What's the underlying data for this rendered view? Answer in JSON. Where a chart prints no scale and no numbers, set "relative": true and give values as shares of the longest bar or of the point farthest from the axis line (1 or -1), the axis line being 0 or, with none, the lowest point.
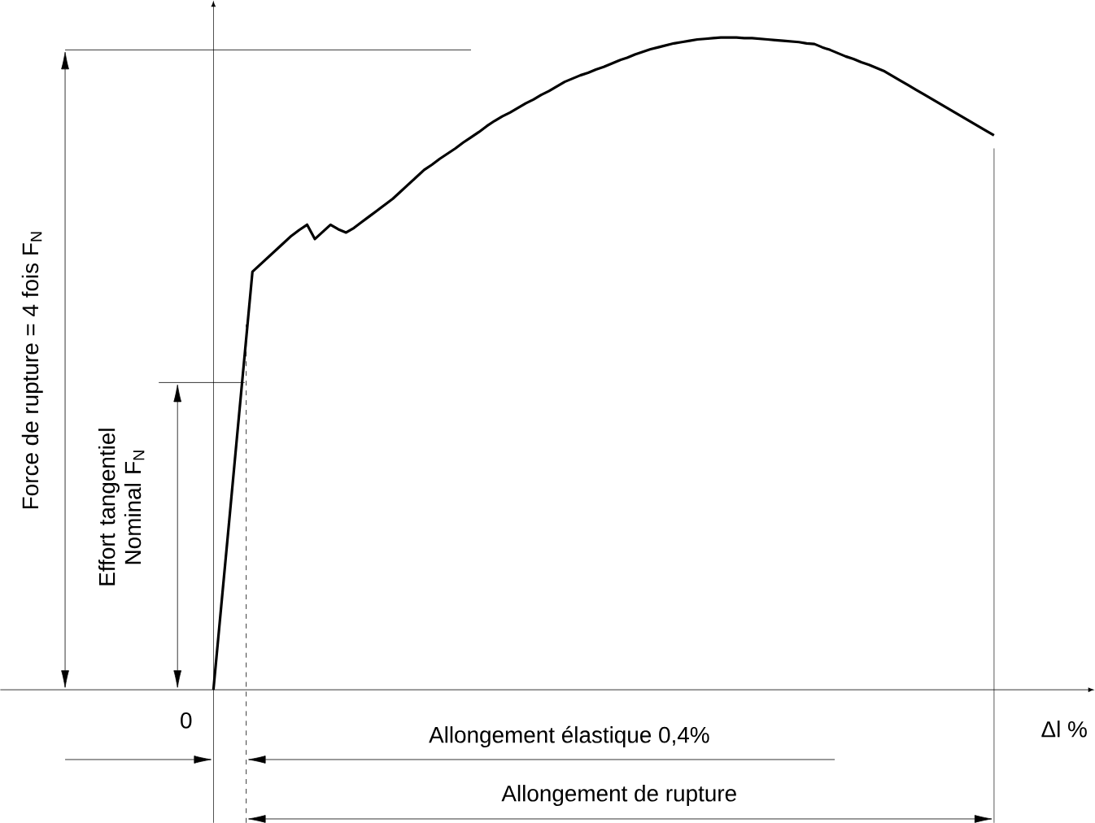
{
  "chart_data": {
    "type": "line",
    "relative": true,
    "xlabel": "Δl %",
    "categories": [
      null,
      null,
      null,
      null,
      null,
      null,
      null,
      null,
      null,
      null,
      null,
      null,
      null,
      null,
      null,
      null,
      null,
      null,
      null,
      null,
      null,
      null,
      null,
      null,
      null,
      null,
      null,
      null,
      null,
      null,
      null,
      null,
      null,
      null,
      null,
      null,
      null,
      null,
      null,
      null,
      null,
      null,
      null,
      null,
      null,
      null,
      null,
      null,
      null,
      null,
      null,
      null,
      null,
      null,
      null,
      null,
      null,
      null,
      null,
      null,
      null,
      null,
      null,
      null,
      null,
      null,
      null,
      null,
      null,
      null,
      null,
      null,
      null,
      null,
      null,
      null,
      null,
      null,
      null,
      null,
      null,
      null,
      null,
      null,
      null,
      null,
      null,
      null,
      null,
      null,
      null,
      null,
      null,
      null,
      null,
      null,
      null,
      null,
      null,
      null,
      null
    ],
    "series": [
      {
        "color": "#000000",
        "values": [
          0,
          0.128,
          0.256,
          0.385,
          0.513,
          0.641,
          0.652,
          0.663,
          0.674,
          0.685,
          0.696,
          0.705,
          0.713,
          0.691,
          0.702,
          0.713,
          0.706,
          0.701,
          0.708,
          0.717,
          0.726,
          0.735,
          0.744,
          0.753,
          0.764,
          0.775,
          0.786,
          0.797,
          0.805,
          0.814,
          0.822,
          0.83,
          0.839,
          0.847,
          0.855,
          0.864,
          0.872,
          0.879,
          0.885,
          0.892,
          0.899,
          0.905,
          0.912,
          0.918,
          0.925,
          0.932,
          0.937,
          0.942,
          0.946,
          0.951,
          0.955,
          0.96,
          0.965,
          0.969,
          0.974,
          0.978,
          0.982,
          0.985,
          0.988,
          0.991,
          0.993,
          0.995,
          0.997,
          0.998,
          0.999,
          1.0,
          1.0,
          1.0,
          0.999,
          0.999,
          0.998,
          0.997,
          0.996,
          0.995,
          0.994,
          0.993,
          0.991,
          0.99,
          0.985,
          0.981,
          0.976,
          0.971,
          0.967,
          0.962,
          0.958,
          0.953,
          0.948,
          0.941,
          0.934,
          0.927,
          0.92,
          0.913,
          0.906,
          0.899,
          0.892,
          0.885,
          0.878,
          0.871,
          0.864,
          0.857,
          0.85
        ]
      }
    ],
    "ref_lines": [
      {
        "axis": "y",
        "value": 0.981
      }
    ],
    "annotations": [
      "0",
      "Force de rupture = 4 fois F$_{N}$",
      "Effort tangentiel Nominal F$_{N}$",
      "Allongement élastique 0,4%",
      "Allongement de rupture"
    ]
  }
}
